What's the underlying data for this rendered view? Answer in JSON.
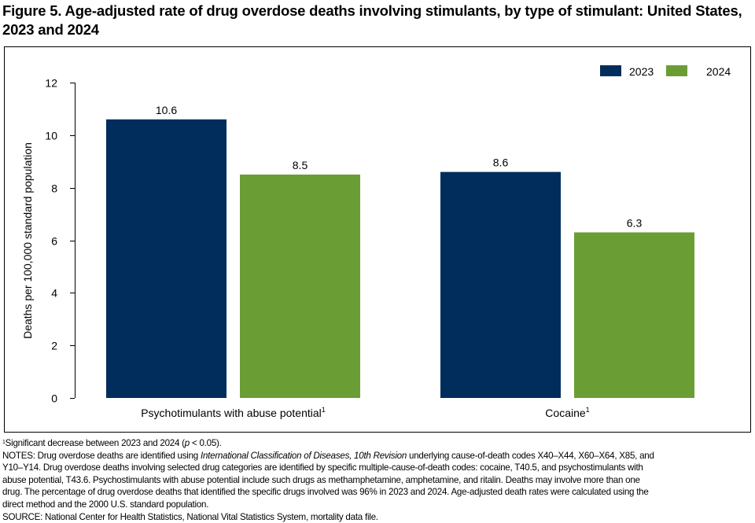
{
  "title": "Figure 5. Age-adjusted rate of drug overdose deaths involving stimulants, by type of stimulant: United States, 2023 and 2024",
  "chart_data": {
    "type": "bar",
    "categories": [
      "Psychotimulants with abuse potential",
      "Cocaine"
    ],
    "category_superscripts": [
      "1",
      "1"
    ],
    "series": [
      {
        "name": "2023",
        "values": [
          10.6,
          8.6
        ],
        "color": "#002D5C"
      },
      {
        "name": "2024",
        "values": [
          8.5,
          6.3
        ],
        "color": "#6A9E34"
      }
    ],
    "data_labels": [
      [
        "10.6",
        "8.6"
      ],
      [
        "8.5",
        "6.3"
      ]
    ],
    "xlabel": "",
    "ylabel": "Deaths per 100,000 standard population",
    "ylim": [
      0,
      12
    ],
    "yticks": [
      0,
      2,
      4,
      6,
      8,
      10,
      12
    ],
    "grid": false,
    "legend_position": "top-right"
  },
  "notes": {
    "footnote_mark": "1",
    "footnote_pre": "Significant decrease between 2023 and 2024 (",
    "footnote_p": "p",
    "footnote_post": " < 0.05).",
    "line1_pre": "NOTES: Drug overdose deaths are identified using ",
    "line1_italic": "International Classification of Diseases, 10th Revision",
    "line1_post": " underlying cause-of-death codes X40–X44, X60–X64, X85, and",
    "line2": "Y10–Y14. Drug overdose deaths involving selected drug categories are identified by specific multiple-cause-of-death codes: cocaine, T40.5, and psychostimulants with",
    "line3": "abuse potential, T43.6. Psychostimulants with abuse potential include such drugs as methamphetamine, amphetamine, and ritalin. Deaths may involve more than one",
    "line4": "drug. The percentage of drug overdose deaths that identified the specific drugs involved was 96% in 2023 and 2024. Age-adjusted death rates were calculated using the",
    "line5": "direct method and the 2000 U.S. standard population.",
    "source": "SOURCE: National Center for Health Statistics, National Vital Statistics System, mortality data file."
  }
}
